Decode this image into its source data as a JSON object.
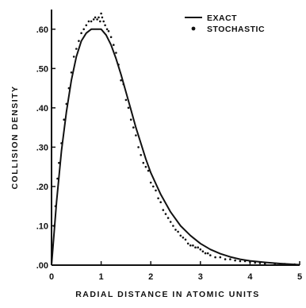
{
  "chart_data": {
    "type": "line",
    "title": "",
    "xlabel": "RADIAL DISTANCE IN ATOMIC UNITS",
    "ylabel": "COLLISION DENSITY",
    "xlim": [
      0,
      5
    ],
    "ylim": [
      0,
      0.65
    ],
    "x_ticks": [
      "0",
      "1",
      "2",
      "3",
      "4",
      "5"
    ],
    "y_ticks": [
      ".00",
      ".10",
      ".20",
      ".30",
      ".40",
      ".50",
      ".60"
    ],
    "grid": false,
    "legend_position": "top-right",
    "series": [
      {
        "name": "EXACT",
        "style": "solid-line",
        "color": "#111111",
        "x": [
          0,
          0.1,
          0.2,
          0.3,
          0.4,
          0.5,
          0.6,
          0.7,
          0.8,
          0.9,
          1.0,
          1.1,
          1.2,
          1.3,
          1.4,
          1.5,
          1.6,
          1.7,
          1.8,
          1.9,
          2.0,
          2.2,
          2.4,
          2.6,
          2.8,
          3.0,
          3.2,
          3.4,
          3.6,
          3.8,
          4.0,
          4.3,
          4.6,
          5.0
        ],
        "y": [
          0,
          0.16,
          0.29,
          0.39,
          0.47,
          0.53,
          0.57,
          0.59,
          0.6,
          0.6,
          0.6,
          0.585,
          0.56,
          0.525,
          0.485,
          0.44,
          0.395,
          0.35,
          0.31,
          0.27,
          0.235,
          0.18,
          0.135,
          0.1,
          0.075,
          0.055,
          0.04,
          0.029,
          0.021,
          0.015,
          0.011,
          0.007,
          0.004,
          0.001
        ]
      },
      {
        "name": "STOCHASTIC",
        "style": "dots",
        "color": "#111111",
        "x": [
          0.02,
          0.05,
          0.08,
          0.12,
          0.15,
          0.2,
          0.25,
          0.3,
          0.35,
          0.4,
          0.45,
          0.5,
          0.55,
          0.6,
          0.65,
          0.7,
          0.75,
          0.8,
          0.85,
          0.88,
          0.92,
          0.95,
          0.98,
          1.0,
          1.02,
          1.05,
          1.08,
          1.12,
          1.15,
          1.2,
          1.25,
          1.3,
          1.35,
          1.4,
          1.45,
          1.5,
          1.55,
          1.6,
          1.65,
          1.7,
          1.75,
          1.8,
          1.85,
          1.9,
          1.95,
          2.0,
          2.05,
          2.1,
          2.15,
          2.2,
          2.25,
          2.3,
          2.35,
          2.4,
          2.45,
          2.5,
          2.55,
          2.6,
          2.65,
          2.7,
          2.75,
          2.8,
          2.85,
          2.9,
          2.95,
          3.0,
          3.05,
          3.1,
          3.15,
          3.2,
          3.3,
          3.4,
          3.5,
          3.6,
          3.7,
          3.8,
          3.9,
          4.0,
          4.1,
          4.2,
          4.3,
          4.5,
          4.7,
          4.9
        ],
        "y": [
          0.05,
          0.1,
          0.15,
          0.22,
          0.26,
          0.31,
          0.37,
          0.41,
          0.45,
          0.49,
          0.53,
          0.55,
          0.57,
          0.59,
          0.6,
          0.61,
          0.62,
          0.62,
          0.625,
          0.63,
          0.625,
          0.63,
          0.62,
          0.64,
          0.63,
          0.62,
          0.61,
          0.6,
          0.595,
          0.58,
          0.56,
          0.54,
          0.51,
          0.47,
          0.46,
          0.42,
          0.4,
          0.37,
          0.35,
          0.33,
          0.3,
          0.28,
          0.26,
          0.25,
          0.24,
          0.21,
          0.2,
          0.19,
          0.17,
          0.16,
          0.14,
          0.13,
          0.12,
          0.11,
          0.1,
          0.09,
          0.085,
          0.075,
          0.07,
          0.065,
          0.055,
          0.05,
          0.05,
          0.045,
          0.045,
          0.04,
          0.035,
          0.03,
          0.03,
          0.025,
          0.02,
          0.02,
          0.015,
          0.015,
          0.012,
          0.01,
          0.01,
          0.008,
          0.006,
          0.005,
          0.004,
          0.003,
          0.003,
          0.002
        ]
      }
    ]
  }
}
